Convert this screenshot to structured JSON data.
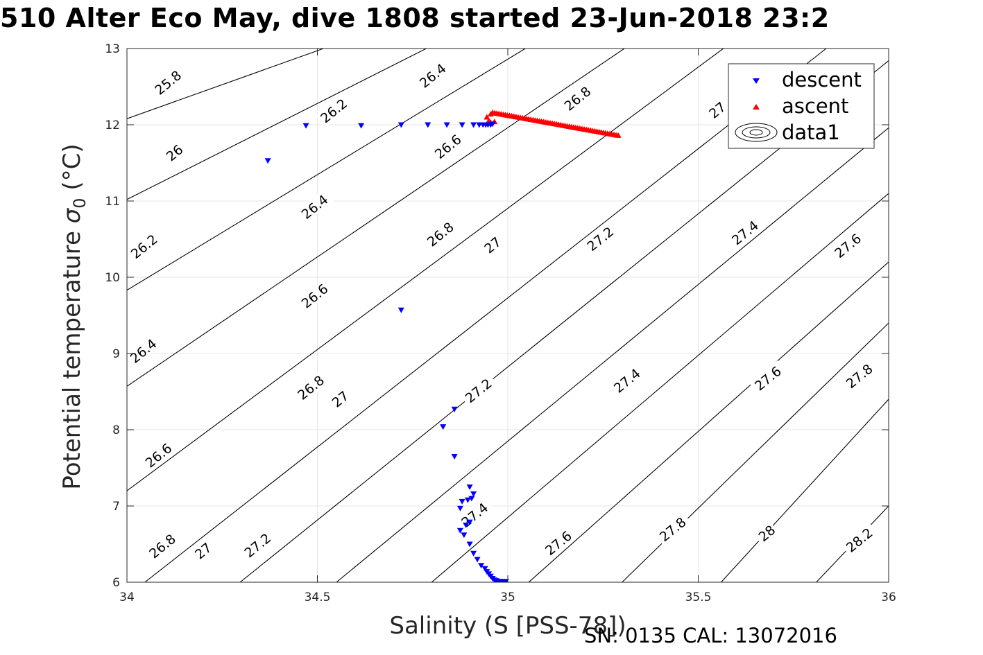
{
  "title": "510 Alter Eco May, dive 1808 started 23-Jun-2018 23:2",
  "footer": "SN: 0135  CAL: 13072016",
  "chart_data": {
    "type": "scatter",
    "xlabel": "Salinity (S [PSS-78])",
    "ylabel_main": "Potential temperature ",
    "ylabel_sigma": "σ",
    "ylabel_sub": "0",
    "ylabel_unit": " (°C)",
    "xlim": [
      34,
      36
    ],
    "ylim": [
      6,
      13
    ],
    "xticks": [
      34,
      34.5,
      35,
      35.5,
      36
    ],
    "xtick_labels": [
      "34",
      "34.5",
      "35",
      "35.5",
      "36"
    ],
    "yticks": [
      6,
      7,
      8,
      9,
      10,
      11,
      12,
      13
    ],
    "ytick_labels": [
      "6",
      "7",
      "8",
      "9",
      "10",
      "11",
      "12",
      "13"
    ],
    "grid": true,
    "legend_position": "top-right",
    "legend": [
      {
        "label": "descent",
        "marker": "triangle-down",
        "color": "#0000ff"
      },
      {
        "label": "ascent",
        "marker": "triangle-up",
        "color": "#ff0000"
      },
      {
        "label": "data1",
        "marker": "contour",
        "color": "#000000"
      }
    ],
    "contours": [
      {
        "level": "25.8",
        "endpoints": [
          [
            34.0,
            12.08
          ],
          [
            34.516,
            13.0
          ]
        ]
      },
      {
        "level": "26",
        "endpoints": [
          [
            34.0,
            11.02
          ],
          [
            34.786,
            13.0
          ]
        ]
      },
      {
        "level": "26.2",
        "endpoints": [
          [
            34.0,
            9.83
          ],
          [
            35.046,
            13.0
          ]
        ]
      },
      {
        "level": "26.4",
        "endpoints": [
          [
            34.0,
            8.57
          ],
          [
            35.306,
            13.0
          ]
        ]
      },
      {
        "level": "26.6",
        "endpoints": [
          [
            34.0,
            7.2
          ],
          [
            35.566,
            13.0
          ]
        ]
      },
      {
        "level": "26.8",
        "endpoints": [
          [
            34.047,
            6.0
          ],
          [
            35.836,
            13.0
          ]
        ]
      },
      {
        "level": "27",
        "endpoints": [
          [
            34.297,
            6.0
          ],
          [
            36.0,
            12.84
          ]
        ]
      },
      {
        "level": "27.2",
        "endpoints": [
          [
            34.55,
            6.0
          ],
          [
            36.0,
            11.96
          ]
        ]
      },
      {
        "level": "27.4",
        "endpoints": [
          [
            34.8,
            6.0
          ],
          [
            36.0,
            11.1
          ]
        ]
      },
      {
        "level": "27.6",
        "endpoints": [
          [
            35.055,
            6.0
          ],
          [
            36.0,
            10.2
          ]
        ]
      },
      {
        "level": "27.8",
        "endpoints": [
          [
            35.3,
            6.0
          ],
          [
            36.0,
            9.4
          ]
        ]
      },
      {
        "level": "28",
        "endpoints": [
          [
            35.56,
            6.0
          ],
          [
            36.0,
            8.4
          ]
        ]
      },
      {
        "level": "28.2",
        "endpoints": [
          [
            35.81,
            6.0
          ],
          [
            36.0,
            7.0
          ]
        ]
      }
    ],
    "contour_labels": [
      {
        "text": "25.8",
        "s": 34.08,
        "t": 12.42
      },
      {
        "text": "26",
        "s": 34.11,
        "t": 11.55
      },
      {
        "text": "26.2",
        "s": 34.017,
        "t": 10.27
      },
      {
        "text": "26.4",
        "s": 34.015,
        "t": 8.9
      },
      {
        "text": "26.6",
        "s": 34.055,
        "t": 7.53
      },
      {
        "text": "26.8",
        "s": 34.065,
        "t": 6.34
      },
      {
        "text": "27",
        "s": 34.185,
        "t": 6.33
      },
      {
        "text": "27.2",
        "s": 34.315,
        "t": 6.35
      },
      {
        "text": "26.2",
        "s": 34.515,
        "t": 12.05
      },
      {
        "text": "26.4",
        "s": 34.465,
        "t": 10.79
      },
      {
        "text": "26.6",
        "s": 34.465,
        "t": 9.62
      },
      {
        "text": "26.8",
        "s": 34.455,
        "t": 8.42
      },
      {
        "text": "27",
        "s": 34.545,
        "t": 8.32
      },
      {
        "text": "27.4",
        "s": 34.885,
        "t": 6.75
      },
      {
        "text": "26.4",
        "s": 34.775,
        "t": 12.51
      },
      {
        "text": "26.6",
        "s": 34.815,
        "t": 11.58
      },
      {
        "text": "26.8",
        "s": 34.795,
        "t": 10.43
      },
      {
        "text": "27",
        "s": 34.945,
        "t": 10.34
      },
      {
        "text": "27.2",
        "s": 34.895,
        "t": 8.38
      },
      {
        "text": "27.6",
        "s": 35.105,
        "t": 6.38
      },
      {
        "text": "26.8",
        "s": 35.155,
        "t": 12.21
      },
      {
        "text": "27.2",
        "s": 35.215,
        "t": 10.37
      },
      {
        "text": "27.4",
        "s": 35.285,
        "t": 8.51
      },
      {
        "text": "27.8",
        "s": 35.405,
        "t": 6.56
      },
      {
        "text": "27",
        "s": 35.535,
        "t": 12.11
      },
      {
        "text": "27.4",
        "s": 35.595,
        "t": 10.45
      },
      {
        "text": "27.6",
        "s": 35.655,
        "t": 8.54
      },
      {
        "text": "28",
        "s": 35.665,
        "t": 6.56
      },
      {
        "text": "27.6",
        "s": 35.865,
        "t": 10.28
      },
      {
        "text": "27.8",
        "s": 35.895,
        "t": 8.57
      },
      {
        "text": "28.2",
        "s": 35.895,
        "t": 6.42
      }
    ],
    "series": [
      {
        "name": "descent",
        "color": "#0000ff",
        "marker": "triangle-down",
        "points": [
          [
            34.37,
            11.53
          ],
          [
            34.47,
            11.99
          ],
          [
            34.615,
            11.99
          ],
          [
            34.72,
            12.0
          ],
          [
            34.79,
            12.0
          ],
          [
            34.84,
            12.0
          ],
          [
            34.88,
            12.0
          ],
          [
            34.91,
            12.0
          ],
          [
            34.925,
            12.0
          ],
          [
            34.935,
            12.0
          ],
          [
            34.942,
            12.0
          ],
          [
            34.948,
            12.0
          ],
          [
            34.955,
            12.0
          ],
          [
            34.96,
            12.01
          ],
          [
            34.72,
            9.57
          ],
          [
            34.83,
            8.04
          ],
          [
            34.86,
            8.27
          ],
          [
            34.86,
            7.65
          ],
          [
            34.9,
            7.25
          ],
          [
            34.91,
            7.16
          ],
          [
            34.905,
            7.1
          ],
          [
            34.895,
            7.08
          ],
          [
            34.88,
            7.06
          ],
          [
            34.875,
            6.97
          ],
          [
            34.9,
            6.79
          ],
          [
            34.89,
            6.75
          ],
          [
            34.875,
            6.68
          ],
          [
            34.885,
            6.62
          ],
          [
            34.9,
            6.5
          ],
          [
            34.91,
            6.38
          ],
          [
            34.92,
            6.3
          ],
          [
            34.93,
            6.22
          ],
          [
            34.94,
            6.18
          ],
          [
            34.945,
            6.14
          ],
          [
            34.95,
            6.11
          ],
          [
            34.955,
            6.08
          ],
          [
            34.96,
            6.05
          ],
          [
            34.965,
            6.03
          ],
          [
            34.97,
            6.02
          ],
          [
            34.975,
            6.01
          ],
          [
            34.98,
            6.01
          ],
          [
            34.985,
            6.01
          ],
          [
            34.99,
            6.01
          ],
          [
            34.995,
            6.01
          ]
        ]
      },
      {
        "name": "ascent",
        "color": "#ff0000",
        "marker": "triangle-up",
        "start": [
          34.96,
          12.16
        ],
        "end": [
          35.29,
          11.86
        ],
        "count": 60,
        "extra_points": [
          [
            34.945,
            12.1
          ],
          [
            34.955,
            12.14
          ],
          [
            34.95,
            12.05
          ],
          [
            34.955,
            12.03
          ],
          [
            34.965,
            12.04
          ]
        ]
      }
    ]
  }
}
